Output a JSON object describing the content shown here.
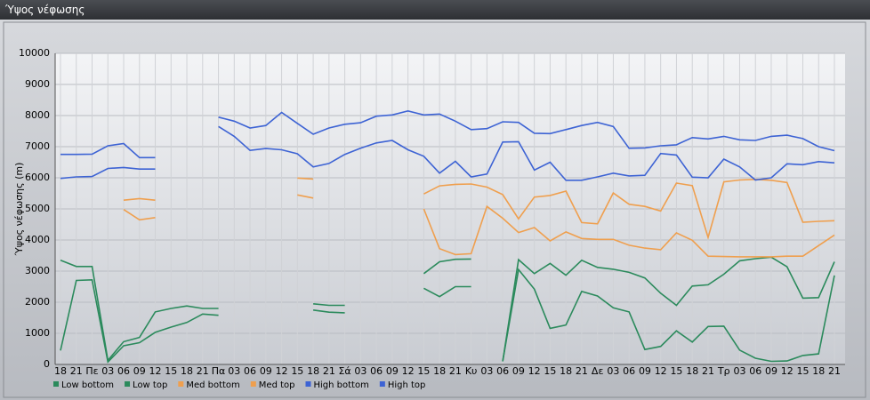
{
  "chart_data": {
    "type": "line",
    "title": "Ύψος νέφωσης",
    "y_label": "Ύψος νέφωσης (m)",
    "categories": [
      "18",
      "21",
      "Πε",
      "03",
      "06",
      "09",
      "12",
      "15",
      "18",
      "21",
      "Πα",
      "03",
      "06",
      "09",
      "12",
      "15",
      "18",
      "21",
      "Σά",
      "03",
      "06",
      "09",
      "12",
      "15",
      "18",
      "21",
      "Κυ",
      "03",
      "06",
      "09",
      "12",
      "15",
      "18",
      "21",
      "Δε",
      "03",
      "06",
      "09",
      "12",
      "15",
      "18",
      "21",
      "Τρ",
      "03",
      "06",
      "09",
      "12",
      "15",
      "18",
      "21"
    ],
    "ylim": [
      0,
      10000
    ],
    "yticks": [
      0,
      1000,
      2000,
      3000,
      4000,
      5000,
      6000,
      7000,
      8000,
      9000,
      10000
    ],
    "grid": true,
    "series": [
      {
        "name": "Low bottom",
        "color": "#2b8a5c",
        "values": [
          450,
          2700,
          2720,
          80,
          600,
          700,
          1030,
          1200,
          1350,
          1620,
          1580,
          null,
          null,
          null,
          null,
          null,
          1750,
          1680,
          1660,
          null,
          null,
          null,
          null,
          2450,
          2180,
          2500,
          2500,
          null,
          100,
          3050,
          2420,
          1160,
          1270,
          2350,
          2200,
          1820,
          1690,
          480,
          580,
          1080,
          720,
          1220,
          1230,
          460,
          200,
          100,
          110,
          290,
          340,
          2860
        ]
      },
      {
        "name": "Low top",
        "color": "#2b8a5c",
        "values": [
          3350,
          3150,
          3150,
          130,
          730,
          870,
          1690,
          1800,
          1880,
          1800,
          1800,
          null,
          null,
          null,
          null,
          null,
          1950,
          1900,
          1900,
          null,
          null,
          null,
          null,
          2920,
          3300,
          3380,
          3390,
          null,
          100,
          3370,
          2920,
          3250,
          2870,
          3350,
          3120,
          3060,
          2960,
          2780,
          2290,
          1900,
          2520,
          2560,
          2900,
          3330,
          3400,
          3450,
          3140,
          2130,
          2150,
          3300
        ]
      },
      {
        "name": "Med bottom",
        "color": "#ef9f4e",
        "values": [
          null,
          null,
          null,
          null,
          4980,
          4650,
          4720,
          null,
          null,
          null,
          null,
          null,
          null,
          null,
          null,
          5450,
          5350,
          null,
          null,
          null,
          null,
          null,
          null,
          5000,
          3720,
          3530,
          3560,
          5080,
          4700,
          4240,
          4400,
          3970,
          4260,
          4050,
          4020,
          4020,
          3830,
          3740,
          3690,
          4230,
          3990,
          3480,
          3470,
          3460,
          3460,
          3460,
          3480,
          3480,
          3820,
          4160
        ]
      },
      {
        "name": "Med top",
        "color": "#ef9f4e",
        "values": [
          null,
          null,
          null,
          null,
          5280,
          5330,
          5280,
          null,
          null,
          null,
          null,
          null,
          null,
          null,
          null,
          5990,
          5960,
          null,
          null,
          null,
          null,
          null,
          null,
          5480,
          5740,
          5790,
          5800,
          5700,
          5460,
          4680,
          5380,
          5430,
          5570,
          4560,
          4520,
          5510,
          5150,
          5080,
          4930,
          5830,
          5750,
          4080,
          5870,
          5930,
          5950,
          5920,
          5850,
          4570,
          4600,
          4620
        ]
      },
      {
        "name": "High bottom",
        "color": "#3d63d4",
        "values": [
          5980,
          6030,
          6040,
          6300,
          6330,
          6280,
          6280,
          null,
          null,
          null,
          7650,
          7330,
          6880,
          6940,
          6900,
          6770,
          6350,
          6460,
          6750,
          6950,
          7120,
          7200,
          6900,
          6690,
          6150,
          6530,
          6030,
          6120,
          7150,
          7160,
          6250,
          6500,
          5920,
          5920,
          6030,
          6150,
          6060,
          6080,
          6780,
          6730,
          6020,
          6000,
          6600,
          6350,
          5930,
          6000,
          6450,
          6420,
          6520,
          6480
        ]
      },
      {
        "name": "High top",
        "color": "#3d63d4",
        "values": [
          6750,
          6750,
          6760,
          7030,
          7100,
          6650,
          6650,
          null,
          null,
          null,
          7950,
          7820,
          7600,
          7680,
          8100,
          7750,
          7400,
          7600,
          7720,
          7770,
          7980,
          8020,
          8150,
          8020,
          8050,
          7820,
          7550,
          7580,
          7800,
          7780,
          7430,
          7420,
          7550,
          7680,
          7780,
          7650,
          6950,
          6960,
          7030,
          7060,
          7290,
          7250,
          7330,
          7220,
          7200,
          7330,
          7370,
          7260,
          7000,
          6870
        ]
      }
    ]
  }
}
